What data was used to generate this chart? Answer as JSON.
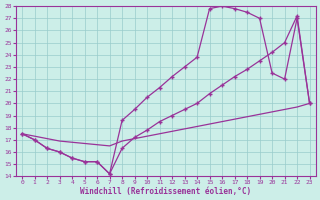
{
  "xlabel": "Windchill (Refroidissement éolien,°C)",
  "xlim": [
    -0.5,
    23.5
  ],
  "ylim": [
    14,
    28
  ],
  "xticks": [
    0,
    1,
    2,
    3,
    4,
    5,
    6,
    7,
    8,
    9,
    10,
    11,
    12,
    13,
    14,
    15,
    16,
    17,
    18,
    19,
    20,
    21,
    22,
    23
  ],
  "yticks": [
    14,
    15,
    16,
    17,
    18,
    19,
    20,
    21,
    22,
    23,
    24,
    25,
    26,
    27,
    28
  ],
  "bg_color": "#cceee8",
  "line_color": "#993399",
  "grid_color": "#99cccc",
  "line1_x": [
    0,
    1,
    2,
    3,
    4,
    5,
    6,
    7,
    8,
    9,
    10,
    11,
    12,
    13,
    14,
    15,
    16,
    17,
    18,
    19,
    20,
    21,
    22,
    23
  ],
  "line1_y": [
    17.5,
    17.0,
    16.3,
    16.0,
    15.5,
    15.2,
    15.2,
    14.2,
    18.6,
    19.5,
    20.5,
    21.3,
    22.2,
    23.0,
    23.8,
    27.8,
    28.0,
    27.8,
    27.5,
    27.0,
    22.5,
    22.0,
    27.0,
    20.0
  ],
  "line2_x": [
    0,
    1,
    2,
    3,
    4,
    5,
    6,
    7,
    8,
    9,
    10,
    11,
    12,
    13,
    14,
    15,
    16,
    17,
    18,
    19,
    20,
    21,
    22,
    23
  ],
  "line2_y": [
    17.5,
    17.0,
    16.3,
    16.0,
    15.5,
    15.2,
    15.2,
    14.2,
    16.3,
    17.2,
    17.8,
    18.5,
    19.0,
    19.5,
    20.0,
    20.8,
    21.5,
    22.2,
    22.8,
    23.5,
    24.2,
    25.0,
    27.2,
    20.0
  ],
  "line3_x": [
    0,
    1,
    2,
    3,
    4,
    5,
    6,
    7,
    8,
    9,
    10,
    11,
    12,
    13,
    14,
    15,
    16,
    17,
    18,
    19,
    20,
    21,
    22,
    23
  ],
  "line3_y": [
    17.5,
    17.3,
    17.1,
    16.9,
    16.8,
    16.7,
    16.6,
    16.5,
    16.9,
    17.1,
    17.3,
    17.5,
    17.7,
    17.9,
    18.1,
    18.3,
    18.5,
    18.7,
    18.9,
    19.1,
    19.3,
    19.5,
    19.7,
    20.0
  ]
}
